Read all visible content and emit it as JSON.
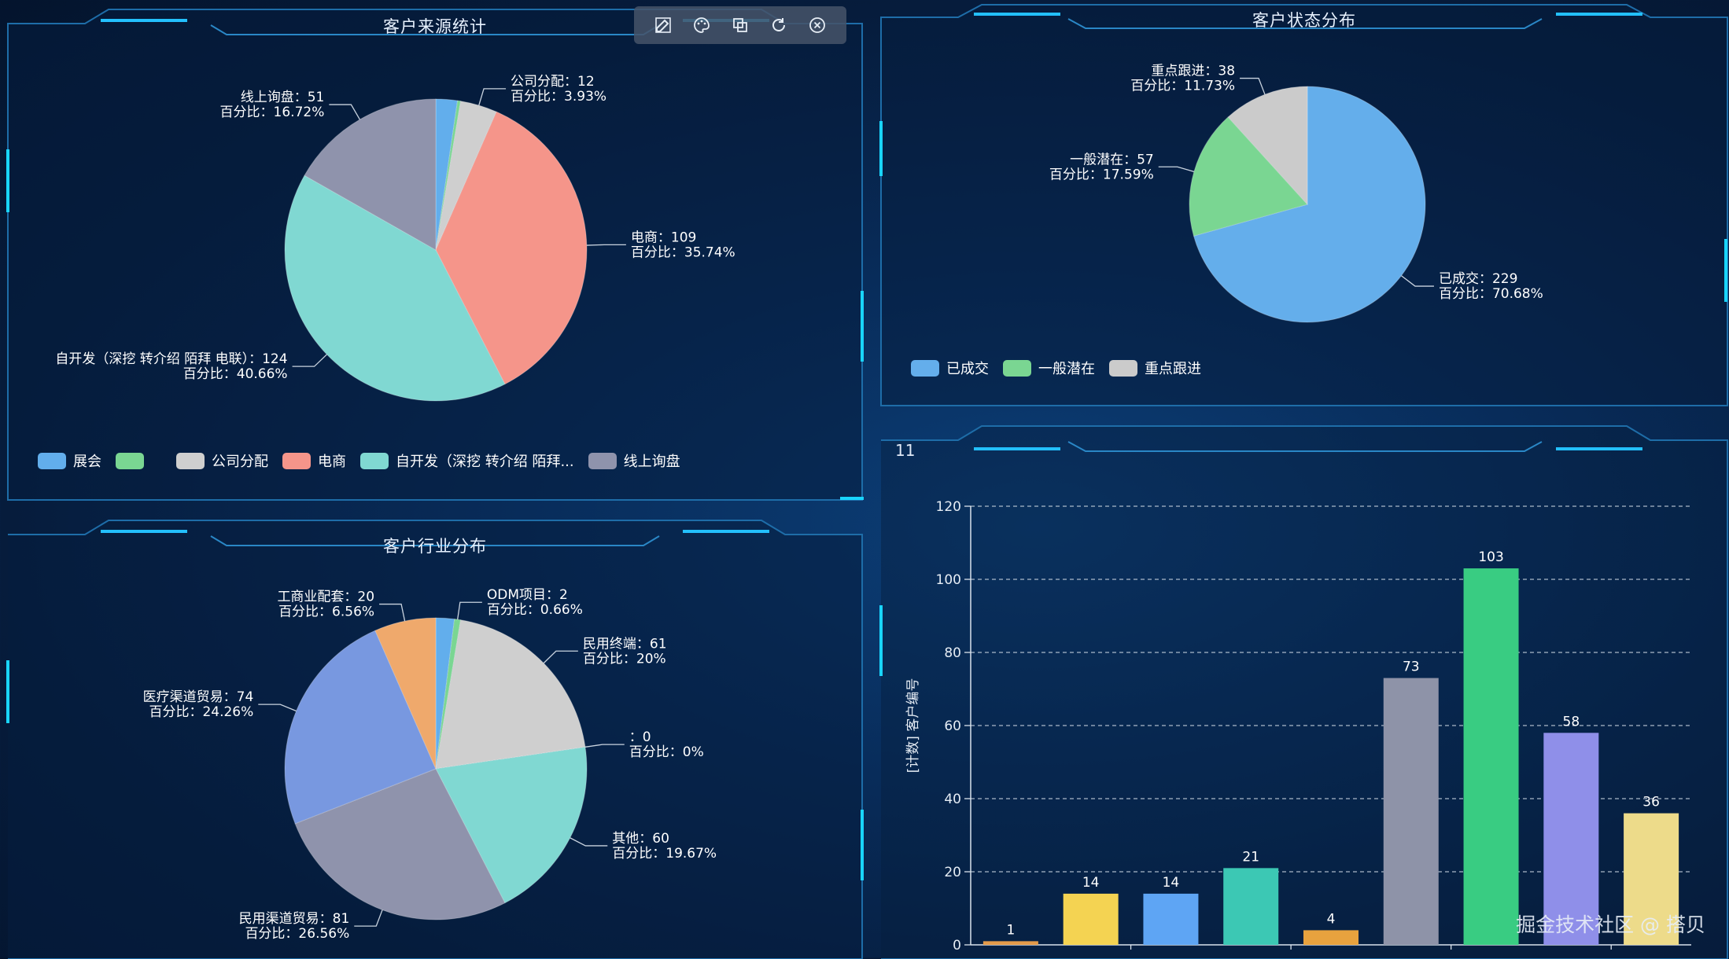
{
  "panels": {
    "source": {
      "title": "客户来源统计"
    },
    "status": {
      "title": "客户状态分布"
    },
    "industry": {
      "title": "客户行业分布"
    },
    "bar": {
      "corner_label": "11"
    }
  },
  "toolbar": {
    "icons": [
      "edit-icon",
      "palette-icon",
      "copy-icon",
      "refresh-icon",
      "close-icon"
    ]
  },
  "watermark": "掘金技术社区 @ 搭贝",
  "chart_data": [
    {
      "type": "pie",
      "id": "source",
      "slices": [
        {
          "name": "展会",
          "value": 7,
          "color": "#62aeec",
          "label": ""
        },
        {
          "name": "",
          "value": 1,
          "color": "#7ad692",
          "label": ""
        },
        {
          "name": "公司分配",
          "value": 12,
          "percent": "3.93%",
          "color": "#cfcfcf",
          "label": "公司分配：12",
          "pct_label": "百分比：3.93%"
        },
        {
          "name": "电商",
          "value": 109,
          "percent": "35.74%",
          "color": "#f5958a",
          "label": "电商：109",
          "pct_label": "百分比：35.74%"
        },
        {
          "name": "自开发（深挖 转介绍 陌拜 电联）",
          "value": 124,
          "percent": "40.66%",
          "color": "#80d8d2",
          "label": "自开发（深挖 转介绍 陌拜 电联）：124",
          "pct_label": "百分比：40.66%"
        },
        {
          "name": "线上询盘",
          "value": 51,
          "percent": "16.72%",
          "color": "#8f93ac",
          "label": "线上询盘：51",
          "pct_label": "百分比：16.72%"
        }
      ],
      "legend": [
        "展会",
        "",
        "公司分配",
        "电商",
        "自开发（深挖 转介绍 陌拜...",
        "线上询盘"
      ]
    },
    {
      "type": "pie",
      "id": "status",
      "slices": [
        {
          "name": "已成交",
          "value": 229,
          "percent": "70.68%",
          "color": "#64aeeb",
          "label": "已成交：229",
          "pct_label": "百分比：70.68%"
        },
        {
          "name": "一般潜在",
          "value": 57,
          "percent": "17.59%",
          "color": "#7ad692",
          "label": "一般潜在：57",
          "pct_label": "百分比：17.59%"
        },
        {
          "name": "重点跟进",
          "value": 38,
          "percent": "11.73%",
          "color": "#cbcbcb",
          "label": "重点跟进：38",
          "pct_label": "百分比：11.73%"
        }
      ],
      "legend": [
        "已成交",
        "一般潜在",
        "重点跟进"
      ]
    },
    {
      "type": "pie",
      "id": "industry",
      "slices": [
        {
          "name": "",
          "value": 6,
          "color": "#62aeec",
          "label": ""
        },
        {
          "name": "ODM项目",
          "value": 2,
          "percent": "0.66%",
          "color": "#7ad692",
          "label": "ODM项目：2",
          "pct_label": "百分比：0.66%"
        },
        {
          "name": "民用终端",
          "value": 61,
          "percent": "20%",
          "color": "#cfcfcf",
          "label": "民用终端：61",
          "pct_label": "百分比：20%"
        },
        {
          "name": "",
          "value": 0,
          "percent": "0%",
          "color": "#f5958a",
          "label": "：0",
          "pct_label": "百分比：0%"
        },
        {
          "name": "其他",
          "value": 60,
          "percent": "19.67%",
          "color": "#80d8d2",
          "label": "其他：60",
          "pct_label": "百分比：19.67%"
        },
        {
          "name": "民用渠道贸易",
          "value": 81,
          "percent": "26.56%",
          "color": "#8f93ac",
          "label": "民用渠道贸易：81",
          "pct_label": "百分比：26.56%"
        },
        {
          "name": "医疗渠道贸易",
          "value": 74,
          "percent": "24.26%",
          "color": "#7898e0",
          "label": "医疗渠道贸易：74",
          "pct_label": "百分比：24.26%"
        },
        {
          "name": "工商业配套",
          "value": 20,
          "percent": "6.56%",
          "color": "#efa96c",
          "label": "工商业配套：20",
          "pct_label": "百分比：6.56%"
        }
      ]
    },
    {
      "type": "bar",
      "id": "bar",
      "ylabel": "[计数] 客户编号",
      "ylim": [
        0,
        120
      ],
      "yticks": [
        0,
        20,
        40,
        60,
        80,
        100,
        120
      ],
      "grid": true,
      "categories": [
        "",
        "",
        "",
        "",
        "",
        "",
        "",
        "",
        ""
      ],
      "values": [
        1,
        14,
        14,
        21,
        4,
        73,
        103,
        58,
        36
      ],
      "colors": [
        "#e39a4a",
        "#f4d352",
        "#5ea5f4",
        "#3cc8b4",
        "#e8a23e",
        "#8e93a8",
        "#39cc82",
        "#8f8fe9",
        "#eddb8a"
      ]
    }
  ]
}
